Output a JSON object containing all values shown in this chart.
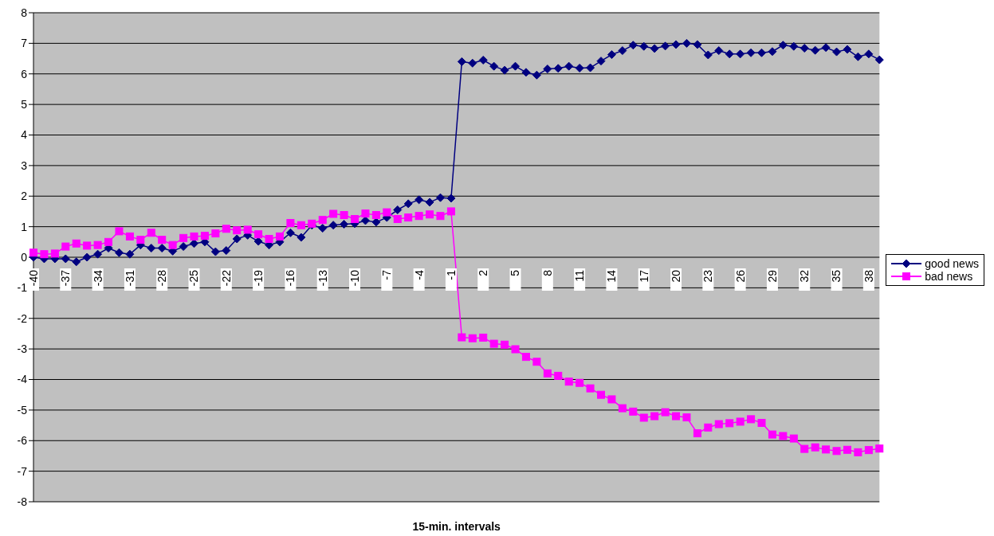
{
  "chart_data": {
    "type": "line",
    "xlabel": "15-min. intervals",
    "categories": [
      "-40",
      null,
      null,
      "-37",
      null,
      null,
      "-34",
      null,
      null,
      "-31",
      null,
      null,
      "-28",
      null,
      null,
      "-25",
      null,
      null,
      "-22",
      null,
      null,
      "-19",
      null,
      null,
      "-16",
      null,
      null,
      "-13",
      null,
      null,
      "-10",
      null,
      null,
      "-7",
      null,
      null,
      "-4",
      null,
      null,
      "-1",
      null,
      null,
      "2",
      null,
      null,
      "5",
      null,
      null,
      "8",
      null,
      null,
      "11",
      null,
      null,
      "14",
      null,
      null,
      "17",
      null,
      null,
      "20",
      null,
      null,
      "23",
      null,
      null,
      "26",
      null,
      null,
      "29",
      null,
      null,
      "32",
      null,
      null,
      "35",
      null,
      null,
      "38",
      null
    ],
    "series": [
      {
        "name": "good news",
        "color": "#000080",
        "marker": "diamond",
        "values": [
          0.0,
          -0.05,
          -0.05,
          -0.05,
          -0.15,
          0.0,
          0.1,
          0.3,
          0.15,
          0.1,
          0.4,
          0.3,
          0.3,
          0.2,
          0.35,
          0.45,
          0.5,
          0.18,
          0.22,
          0.6,
          0.72,
          0.52,
          0.4,
          0.5,
          0.8,
          0.65,
          1.05,
          0.95,
          1.05,
          1.08,
          1.1,
          1.2,
          1.15,
          1.3,
          1.55,
          1.75,
          1.88,
          1.8,
          1.95,
          1.93,
          6.4,
          6.35,
          6.45,
          6.25,
          6.12,
          6.25,
          6.05,
          5.96,
          6.16,
          6.18,
          6.25,
          6.19,
          6.2,
          6.42,
          6.63,
          6.76,
          6.94,
          6.9,
          6.83,
          6.91,
          6.96,
          7.0,
          6.96,
          6.62,
          6.76,
          6.65,
          6.65,
          6.69,
          6.69,
          6.73,
          6.94,
          6.9,
          6.84,
          6.77,
          6.86,
          6.72,
          6.8,
          6.56,
          6.65,
          6.46
        ]
      },
      {
        "name": "bad news",
        "color": "#ff00ff",
        "marker": "square",
        "values": [
          0.15,
          0.1,
          0.12,
          0.35,
          0.45,
          0.38,
          0.4,
          0.5,
          0.85,
          0.68,
          0.57,
          0.8,
          0.57,
          0.4,
          0.63,
          0.68,
          0.7,
          0.78,
          0.93,
          0.88,
          0.9,
          0.75,
          0.6,
          0.68,
          1.12,
          1.05,
          1.1,
          1.22,
          1.42,
          1.38,
          1.25,
          1.43,
          1.38,
          1.47,
          1.25,
          1.3,
          1.35,
          1.4,
          1.35,
          1.5,
          -2.62,
          -2.65,
          -2.63,
          -2.83,
          -2.86,
          -3.01,
          -3.26,
          -3.42,
          -3.8,
          -3.88,
          -4.07,
          -4.11,
          -4.29,
          -4.5,
          -4.65,
          -4.94,
          -5.05,
          -5.25,
          -5.2,
          -5.07,
          -5.2,
          -5.24,
          -5.76,
          -5.57,
          -5.46,
          -5.43,
          -5.38,
          -5.3,
          -5.42,
          -5.8,
          -5.85,
          -5.93,
          -6.27,
          -6.22,
          -6.29,
          -6.34,
          -6.3,
          -6.38,
          -6.31,
          -6.26
        ]
      }
    ],
    "ylim": [
      -8,
      8
    ],
    "yticks": [
      -8,
      -7,
      -6,
      -5,
      -4,
      -3,
      -2,
      -1,
      0,
      1,
      2,
      3,
      4,
      5,
      6,
      7,
      8
    ],
    "grid": "y",
    "legend": "right",
    "line_style": "solid"
  }
}
